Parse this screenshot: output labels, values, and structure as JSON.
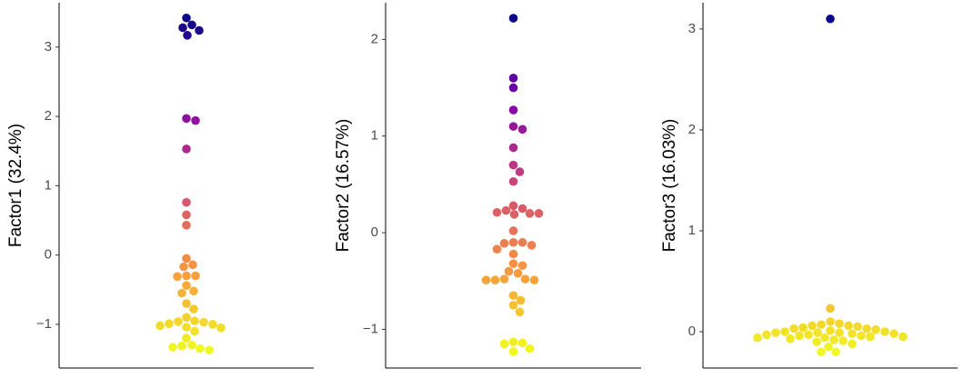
{
  "chart_data": [
    {
      "type": "scatter",
      "y_label": "Factor1 (32.4%)",
      "values": [
        3.42,
        3.32,
        3.28,
        3.24,
        3.17,
        1.97,
        1.94,
        1.53,
        0.76,
        0.58,
        0.43,
        -0.05,
        -0.14,
        -0.17,
        -0.3,
        -0.3,
        -0.31,
        -0.44,
        -0.52,
        -0.55,
        -0.7,
        -0.78,
        -0.9,
        -0.95,
        -0.96,
        -0.97,
        -0.99,
        -1.0,
        -1.02,
        -1.04,
        -1.05,
        -1.1,
        -1.2,
        -1.3,
        -1.31,
        -1.33,
        -1.35,
        -1.37
      ],
      "ylim": [
        -1.63,
        3.64
      ],
      "yticks": [
        {
          "value": -1,
          "label": "−1"
        },
        0,
        1,
        2,
        3
      ],
      "colormap": [
        "#0d0887",
        "#7e03a8",
        "#cc4778",
        "#f89540",
        "#f0f921"
      ]
    },
    {
      "type": "scatter",
      "y_label": "Factor2 (16.57%)",
      "values": [
        2.22,
        1.6,
        1.5,
        1.27,
        1.1,
        1.07,
        0.88,
        0.7,
        0.63,
        0.53,
        0.28,
        0.25,
        0.23,
        0.21,
        0.2,
        0.2,
        0.19,
        0.02,
        -0.1,
        -0.1,
        -0.11,
        -0.13,
        -0.17,
        -0.22,
        -0.32,
        -0.34,
        -0.4,
        -0.42,
        -0.48,
        -0.48,
        -0.49,
        -0.49,
        -0.49,
        -0.65,
        -0.7,
        -0.75,
        -0.82,
        -1.13,
        -1.14,
        -1.15,
        -1.2,
        -1.23
      ],
      "ylim": [
        -1.4,
        2.38
      ],
      "yticks": [
        {
          "value": -1,
          "label": "−1"
        },
        0,
        1,
        2
      ],
      "colormap": [
        "#0d0887",
        "#7e03a8",
        "#cc4778",
        "#f89540",
        "#f0f921"
      ]
    },
    {
      "type": "scatter",
      "y_label": "Factor3 (16.03%)",
      "values": [
        3.1,
        0.23,
        0.1,
        0.08,
        0.07,
        0.06,
        0.06,
        0.05,
        0.04,
        0.03,
        0.03,
        0.02,
        0.01,
        0.0,
        0.0,
        -0.01,
        -0.01,
        -0.01,
        -0.02,
        -0.02,
        -0.03,
        -0.03,
        -0.04,
        -0.04,
        -0.05,
        -0.05,
        -0.06,
        -0.06,
        -0.07,
        -0.08,
        -0.09,
        -0.1,
        -0.12,
        -0.15,
        -0.2,
        -0.2
      ],
      "ylim": [
        -0.36,
        3.26
      ],
      "yticks": [
        0,
        1,
        2,
        3
      ],
      "colormap": [
        "#0d0887",
        "#7e03a8",
        "#cc4778",
        "#f89540",
        "#f0f921"
      ]
    }
  ]
}
